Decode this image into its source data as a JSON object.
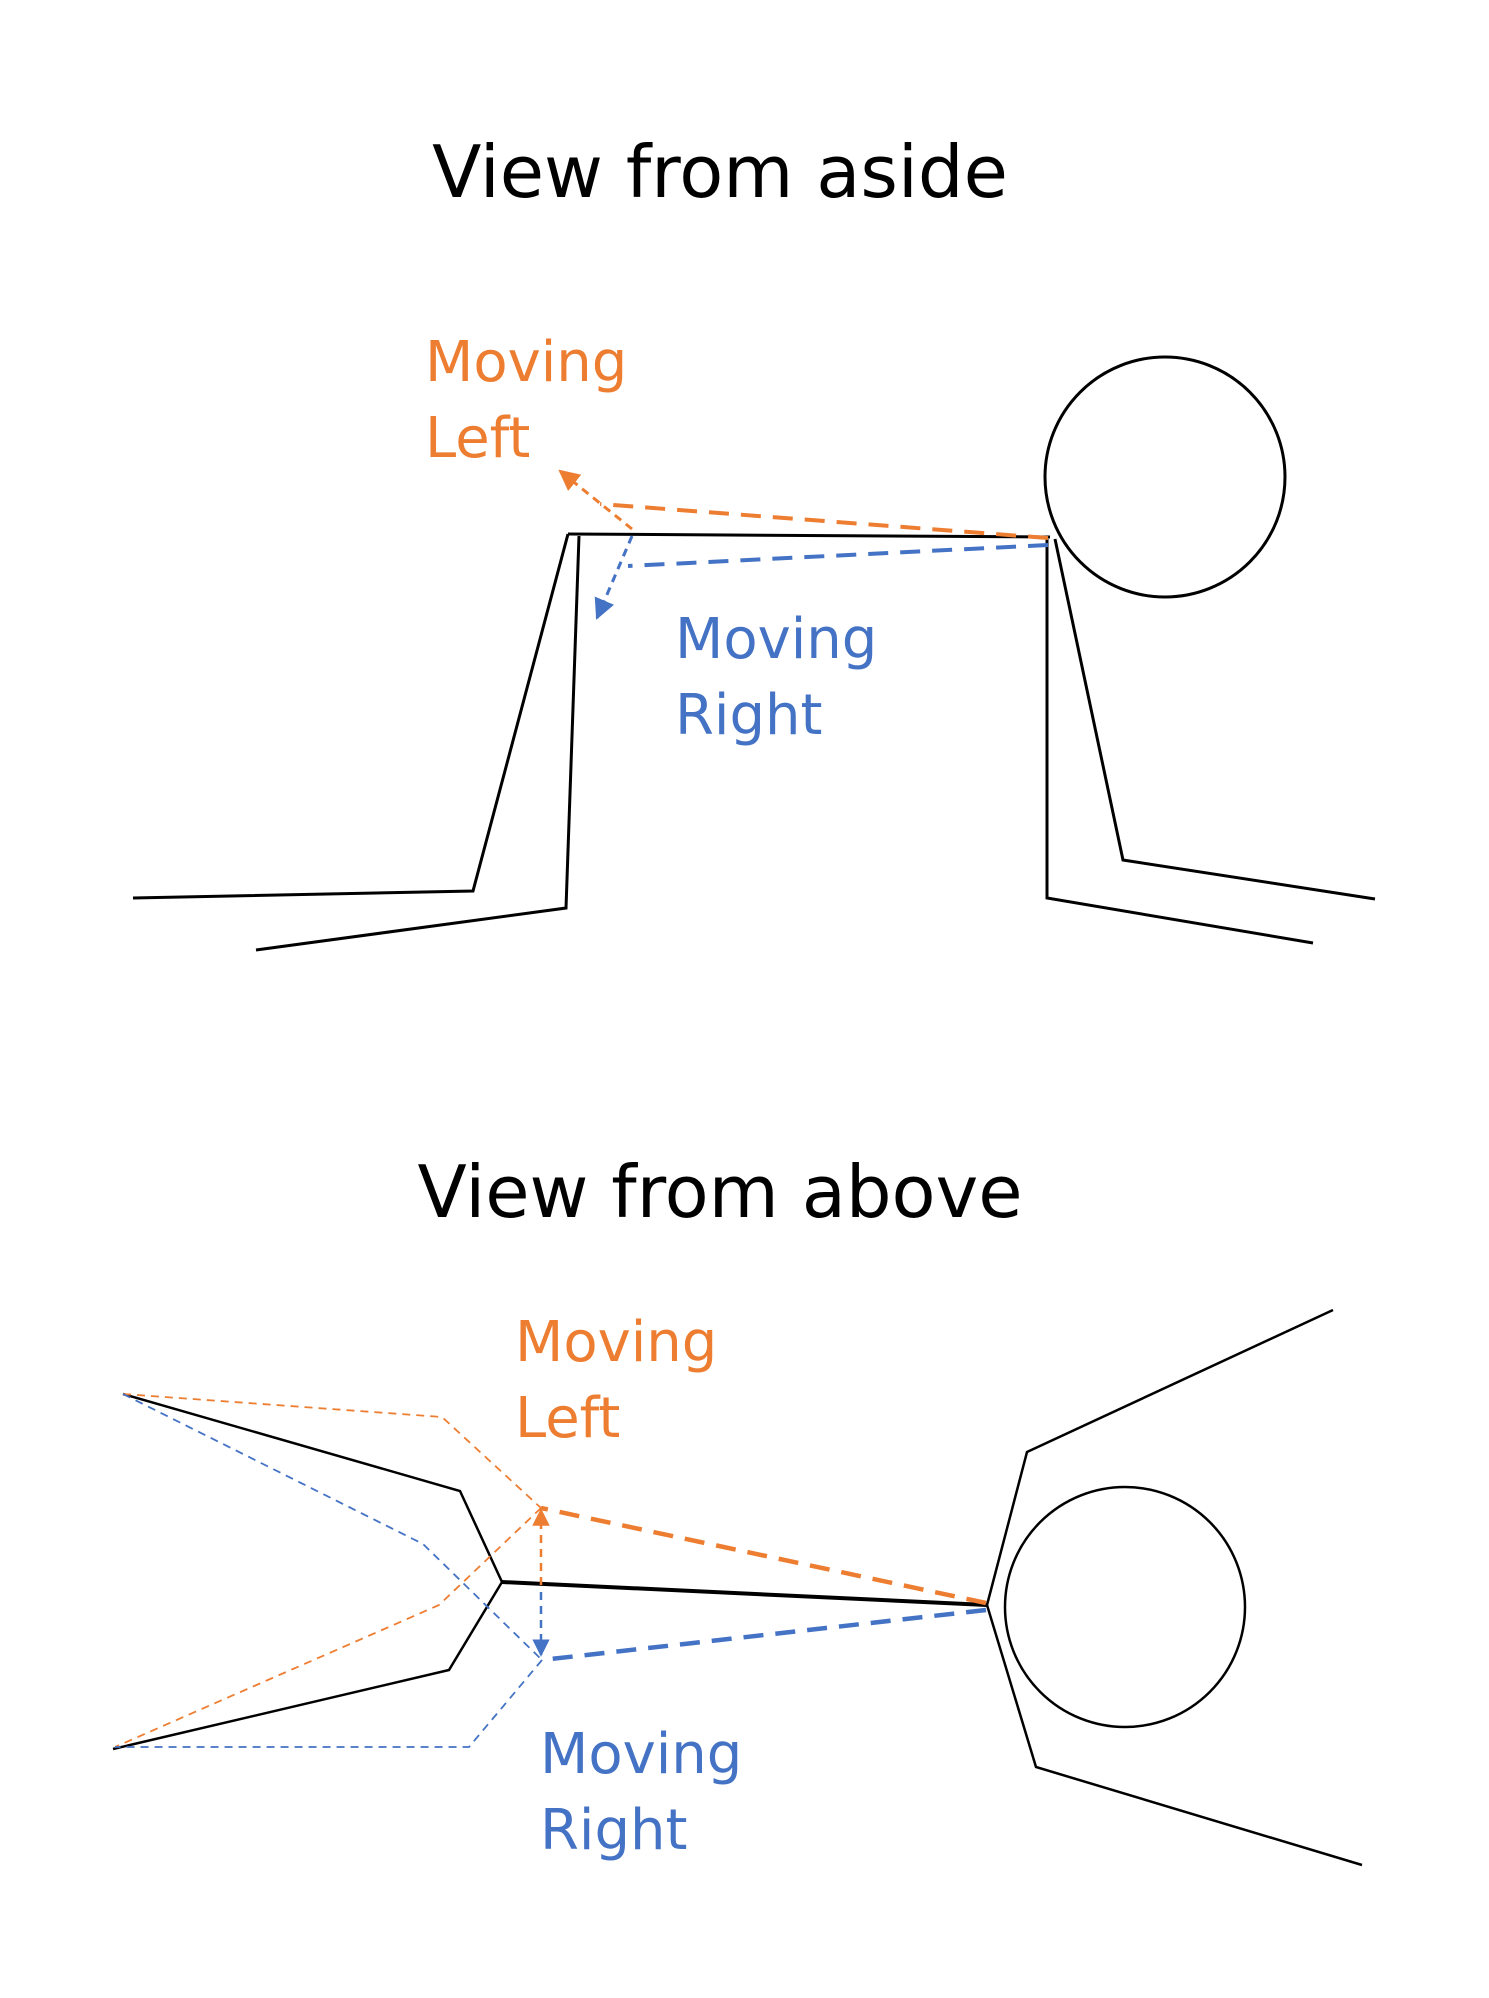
{
  "colors": {
    "line": "#000000",
    "left": "#ED7D31",
    "right": "#4472C4"
  },
  "side_view": {
    "title": "View from aside",
    "left_label": [
      "Moving",
      "Left"
    ],
    "right_label": [
      "Moving",
      "Right"
    ]
  },
  "top_view": {
    "title": "View from above",
    "left_label": [
      "Moving",
      "Left"
    ],
    "right_label": [
      "Moving",
      "Right"
    ]
  }
}
